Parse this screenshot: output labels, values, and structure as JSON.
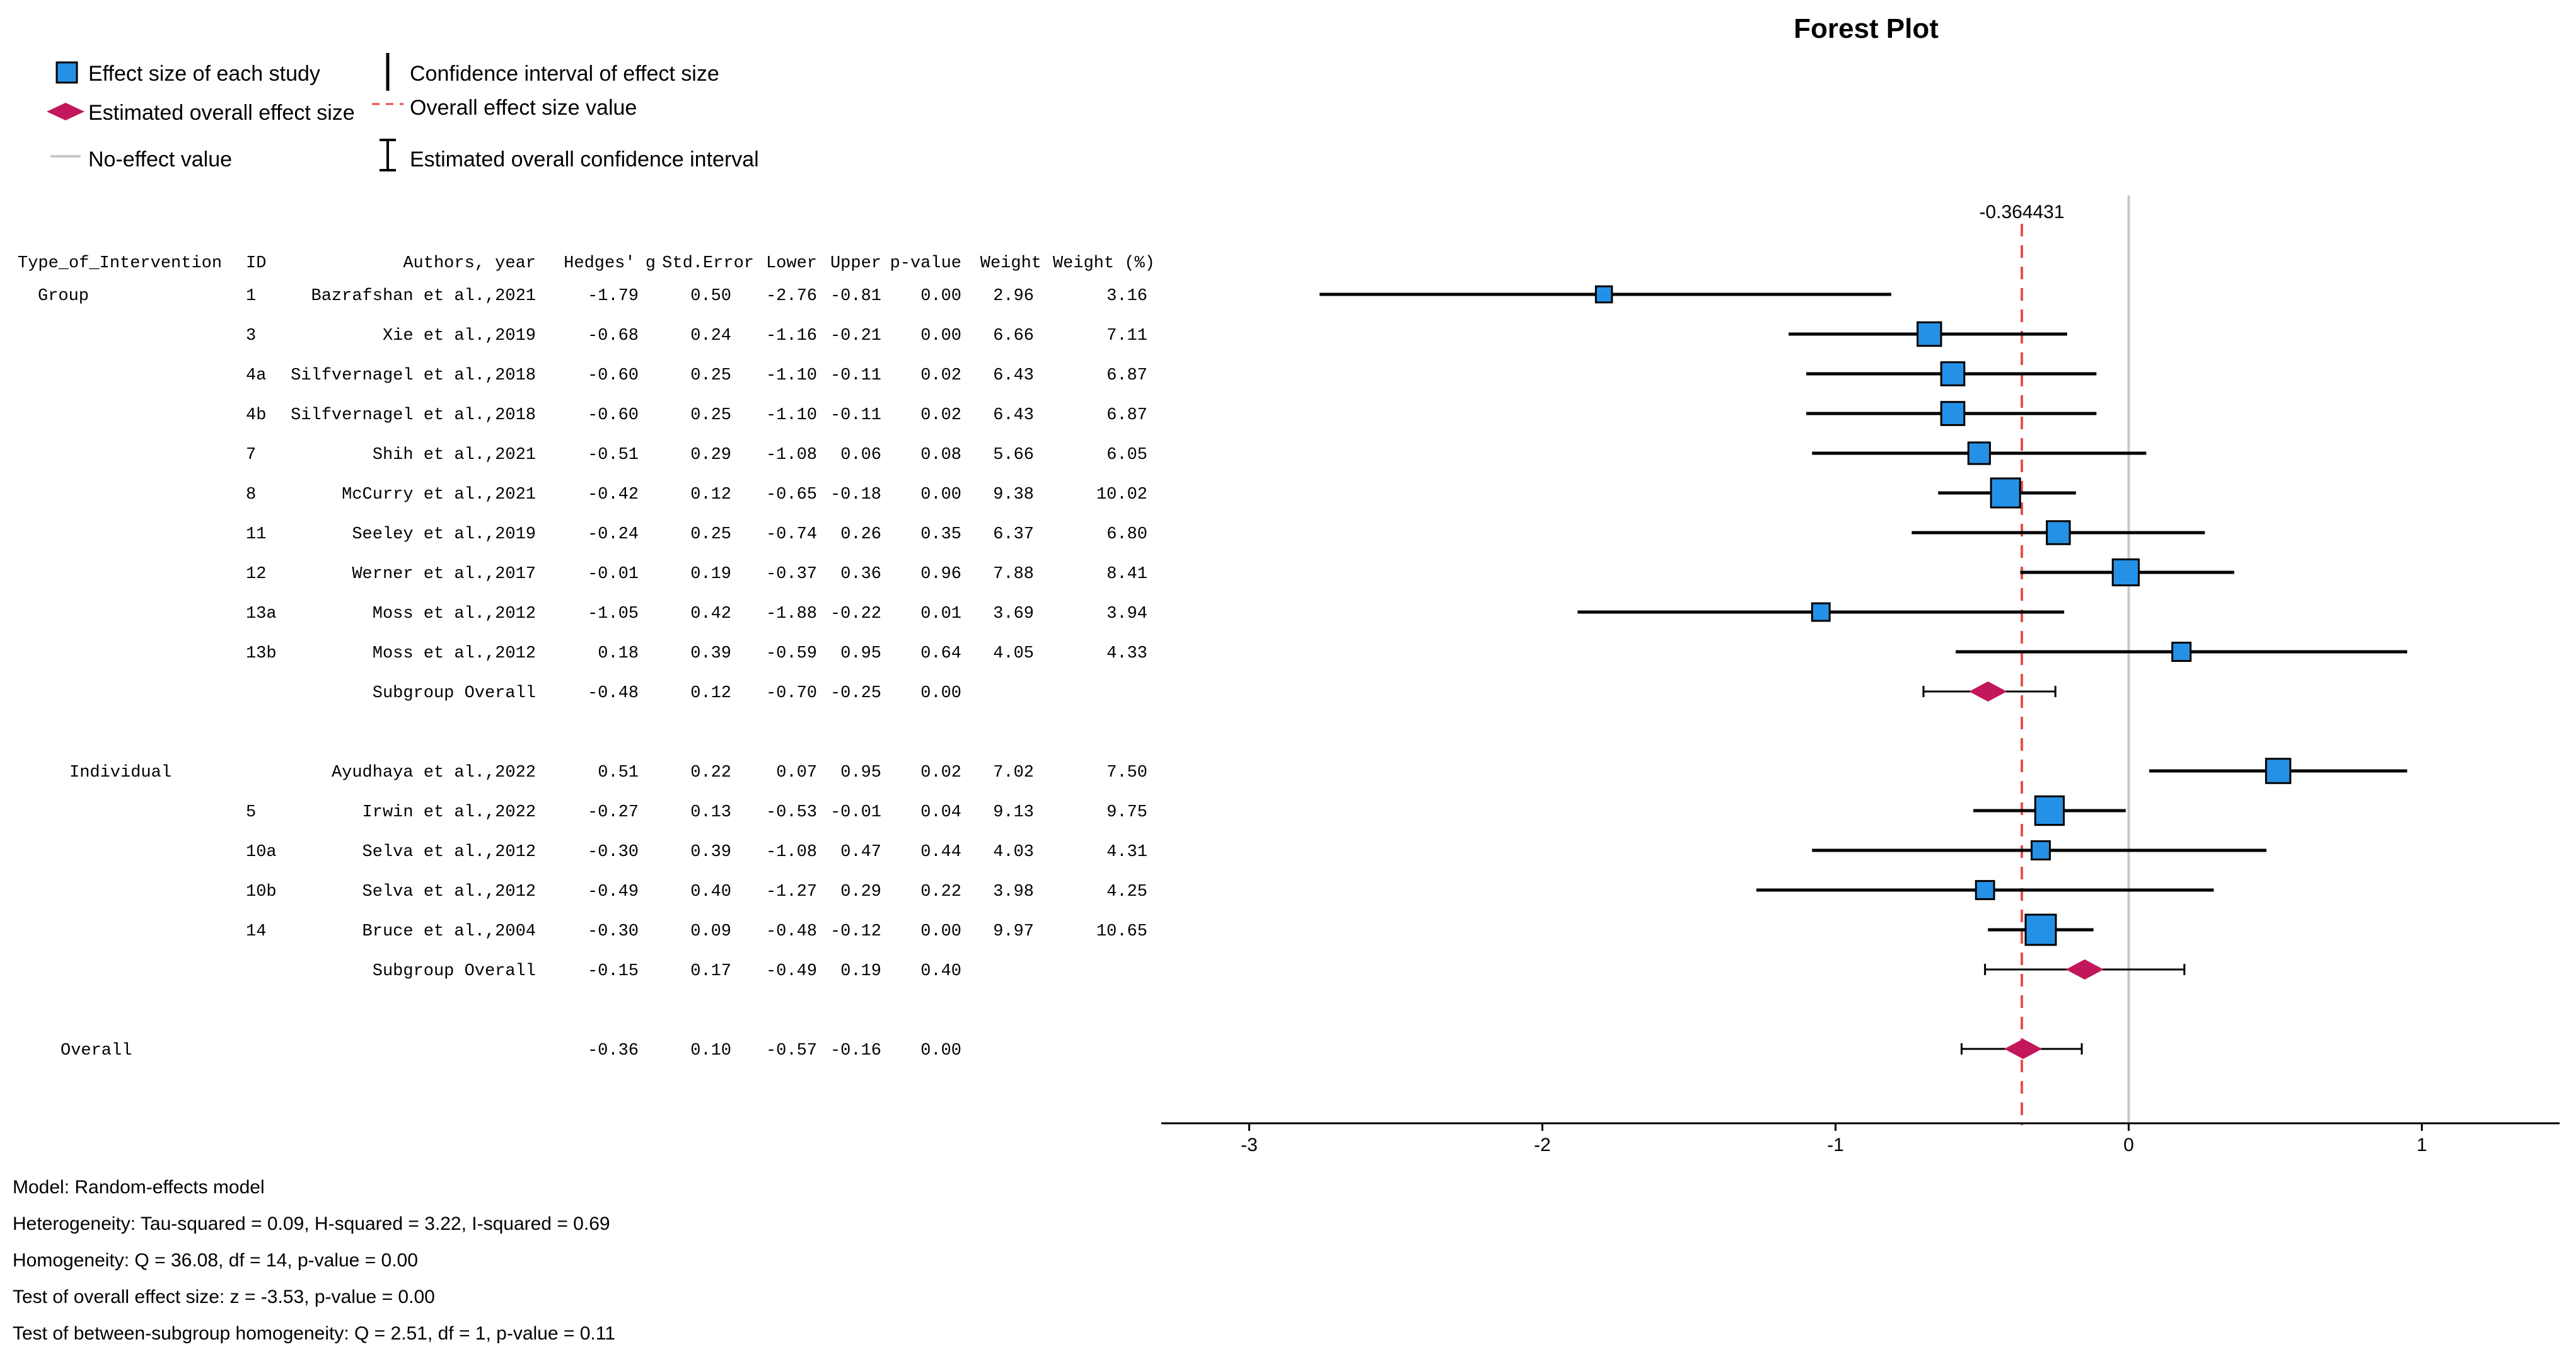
{
  "legend": {
    "effect_size": "Effect size of each study",
    "ci": "Confidence interval of effect size",
    "overall_effect": "Estimated overall effect size",
    "overall_value": "Overall effect size value",
    "no_effect": "No-effect value",
    "overall_ci": "Estimated overall confidence interval"
  },
  "colors": {
    "study_fill": "#2591e6",
    "diamond_fill": "#c2185b",
    "overall_line": "#e8504a",
    "no_effect_line": "#c8c8c8"
  },
  "table": {
    "headers": [
      "Type_of_Intervention",
      "ID",
      "Authors, year",
      "Hedges' g",
      "Std.Error",
      "Lower",
      "Upper",
      "p-value",
      "Weight",
      "Weight (%)"
    ]
  },
  "footer": [
    "Model: Random-effects model",
    "Heterogeneity: Tau-squared = 0.09, H-squared = 3.22, I-squared = 0.69",
    "Homogeneity: Q = 36.08, df = 14, p-value = 0.00",
    "Test of overall effect size: z = -3.53, p-value = 0.00",
    "Test of between-subgroup homogeneity: Q = 2.51, df = 1, p-value = 0.11"
  ],
  "chart_data": {
    "type": "forest",
    "title": "Forest Plot",
    "overall_effect_label": "-0.364431",
    "overall_effect": -0.364431,
    "no_effect": 0,
    "xlim": [
      -3.3,
      1.47
    ],
    "xticks": [
      -3,
      -2,
      -1,
      0,
      1
    ],
    "xtick_labels": [
      "-3",
      "-2",
      "-1",
      "0",
      "1"
    ],
    "rows": [
      {
        "kind": "study",
        "group": "Group",
        "id": "1",
        "author": "Bazrafshan et al.,2021",
        "g": -1.79,
        "se": "0.50",
        "lower": -2.76,
        "upper": -0.81,
        "p": "0.00",
        "weight": "2.96",
        "weight_pct": "3.16"
      },
      {
        "kind": "study",
        "group": "",
        "id": "3",
        "author": "Xie et al.,2019",
        "g": -0.68,
        "se": "0.24",
        "lower": -1.16,
        "upper": -0.21,
        "p": "0.00",
        "weight": "6.66",
        "weight_pct": "7.11"
      },
      {
        "kind": "study",
        "group": "",
        "id": "4a",
        "author": "Silfvernagel et al.,2018",
        "g": -0.6,
        "se": "0.25",
        "lower": -1.1,
        "upper": -0.11,
        "p": "0.02",
        "weight": "6.43",
        "weight_pct": "6.87"
      },
      {
        "kind": "study",
        "group": "",
        "id": "4b",
        "author": "Silfvernagel et al.,2018",
        "g": -0.6,
        "se": "0.25",
        "lower": -1.1,
        "upper": -0.11,
        "p": "0.02",
        "weight": "6.43",
        "weight_pct": "6.87"
      },
      {
        "kind": "study",
        "group": "",
        "id": "7",
        "author": "Shih et al.,2021",
        "g": -0.51,
        "se": "0.29",
        "lower": -1.08,
        "upper": 0.06,
        "p": "0.08",
        "weight": "5.66",
        "weight_pct": "6.05"
      },
      {
        "kind": "study",
        "group": "",
        "id": "8",
        "author": "McCurry et al.,2021",
        "g": -0.42,
        "se": "0.12",
        "lower": -0.65,
        "upper": -0.18,
        "p": "0.00",
        "weight": "9.38",
        "weight_pct": "10.02"
      },
      {
        "kind": "study",
        "group": "",
        "id": "11",
        "author": "Seeley et al.,2019",
        "g": -0.24,
        "se": "0.25",
        "lower": -0.74,
        "upper": 0.26,
        "p": "0.35",
        "weight": "6.37",
        "weight_pct": "6.80"
      },
      {
        "kind": "study",
        "group": "",
        "id": "12",
        "author": "Werner et al.,2017",
        "g": -0.01,
        "se": "0.19",
        "lower": -0.37,
        "upper": 0.36,
        "p": "0.96",
        "weight": "7.88",
        "weight_pct": "8.41"
      },
      {
        "kind": "study",
        "group": "",
        "id": "13a",
        "author": "Moss et al.,2012",
        "g": -1.05,
        "se": "0.42",
        "lower": -1.88,
        "upper": -0.22,
        "p": "0.01",
        "weight": "3.69",
        "weight_pct": "3.94"
      },
      {
        "kind": "study",
        "group": "",
        "id": "13b",
        "author": "Moss et al.,2012",
        "g": 0.18,
        "se": "0.39",
        "lower": -0.59,
        "upper": 0.95,
        "p": "0.64",
        "weight": "4.05",
        "weight_pct": "4.33"
      },
      {
        "kind": "subgroup",
        "group": "",
        "id": "",
        "author": "Subgroup Overall",
        "g": -0.48,
        "se": "0.12",
        "lower": -0.7,
        "upper": -0.25,
        "p": "0.00",
        "weight": "",
        "weight_pct": ""
      },
      {
        "kind": "blank"
      },
      {
        "kind": "study",
        "group": "Individual",
        "id": "",
        "author": "Ayudhaya et al.,2022",
        "g": 0.51,
        "se": "0.22",
        "lower": 0.07,
        "upper": 0.95,
        "p": "0.02",
        "weight": "7.02",
        "weight_pct": "7.50"
      },
      {
        "kind": "study",
        "group": "",
        "id": "5",
        "author": "Irwin et al.,2022",
        "g": -0.27,
        "se": "0.13",
        "lower": -0.53,
        "upper": -0.01,
        "p": "0.04",
        "weight": "9.13",
        "weight_pct": "9.75"
      },
      {
        "kind": "study",
        "group": "",
        "id": "10a",
        "author": "Selva et al.,2012",
        "g": -0.3,
        "se": "0.39",
        "lower": -1.08,
        "upper": 0.47,
        "p": "0.44",
        "weight": "4.03",
        "weight_pct": "4.31"
      },
      {
        "kind": "study",
        "group": "",
        "id": "10b",
        "author": "Selva et al.,2012",
        "g": -0.49,
        "se": "0.40",
        "lower": -1.27,
        "upper": 0.29,
        "p": "0.22",
        "weight": "3.98",
        "weight_pct": "4.25"
      },
      {
        "kind": "study",
        "group": "",
        "id": "14",
        "author": "Bruce et al.,2004",
        "g": -0.3,
        "se": "0.09",
        "lower": -0.48,
        "upper": -0.12,
        "p": "0.00",
        "weight": "9.97",
        "weight_pct": "10.65"
      },
      {
        "kind": "subgroup",
        "group": "",
        "id": "",
        "author": "Subgroup Overall",
        "g": -0.15,
        "se": "0.17",
        "lower": -0.49,
        "upper": 0.19,
        "p": "0.40",
        "weight": "",
        "weight_pct": ""
      },
      {
        "kind": "blank"
      },
      {
        "kind": "overall",
        "group": "Overall",
        "id": "",
        "author": "",
        "g": -0.36,
        "se": "0.10",
        "lower": -0.57,
        "upper": -0.16,
        "p": "0.00",
        "weight": "",
        "weight_pct": ""
      }
    ]
  }
}
